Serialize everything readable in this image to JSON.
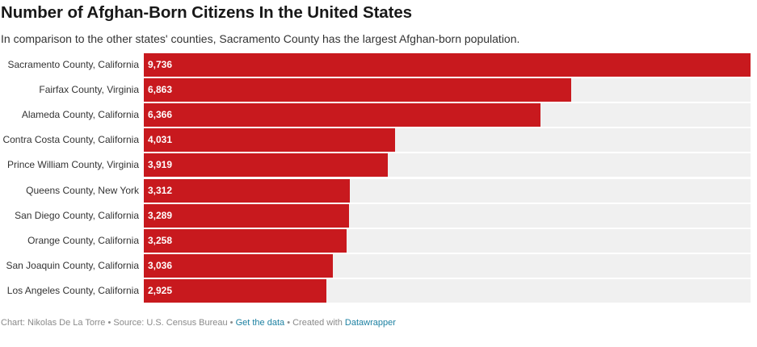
{
  "header": {
    "title": "Number of Afghan-Born Citizens In the United States",
    "subtitle": "In comparison to the other states' counties, Sacramento County has the largest Afghan-born population."
  },
  "colors": {
    "bar": "#c8191e",
    "track": "#f0f0f0"
  },
  "chart_data": {
    "type": "bar",
    "orientation": "horizontal",
    "title": "Number of Afghan-Born Citizens In the United States",
    "subtitle": "In comparison to the other states' counties, Sacramento County has the largest Afghan-born population.",
    "xlabel": "",
    "ylabel": "",
    "xlim": [
      0,
      9736
    ],
    "categories": [
      "Sacramento County, California",
      "Fairfax County, Virginia",
      "Alameda County, California",
      "Contra Costa County, California",
      "Prince William County, Virginia",
      "Queens County, New York",
      "San Diego County, California",
      "Orange County, California",
      "San Joaquin County, California",
      "Los Angeles County, California"
    ],
    "values": [
      9736,
      6863,
      6366,
      4031,
      3919,
      3312,
      3289,
      3258,
      3036,
      2925
    ],
    "value_labels": [
      "9,736",
      "6,863",
      "6,366",
      "4,031",
      "3,919",
      "3,312",
      "3,289",
      "3,258",
      "3,036",
      "2,925"
    ]
  },
  "footer": {
    "chart_prefix": "Chart: Nikolas De La Torre",
    "sep1": " • ",
    "source": "Source: U.S. Census Bureau",
    "sep2": " • ",
    "get_data_link": "Get the data",
    "sep3": " • ",
    "created_with": "Created with ",
    "datawrapper_link": "Datawrapper"
  }
}
